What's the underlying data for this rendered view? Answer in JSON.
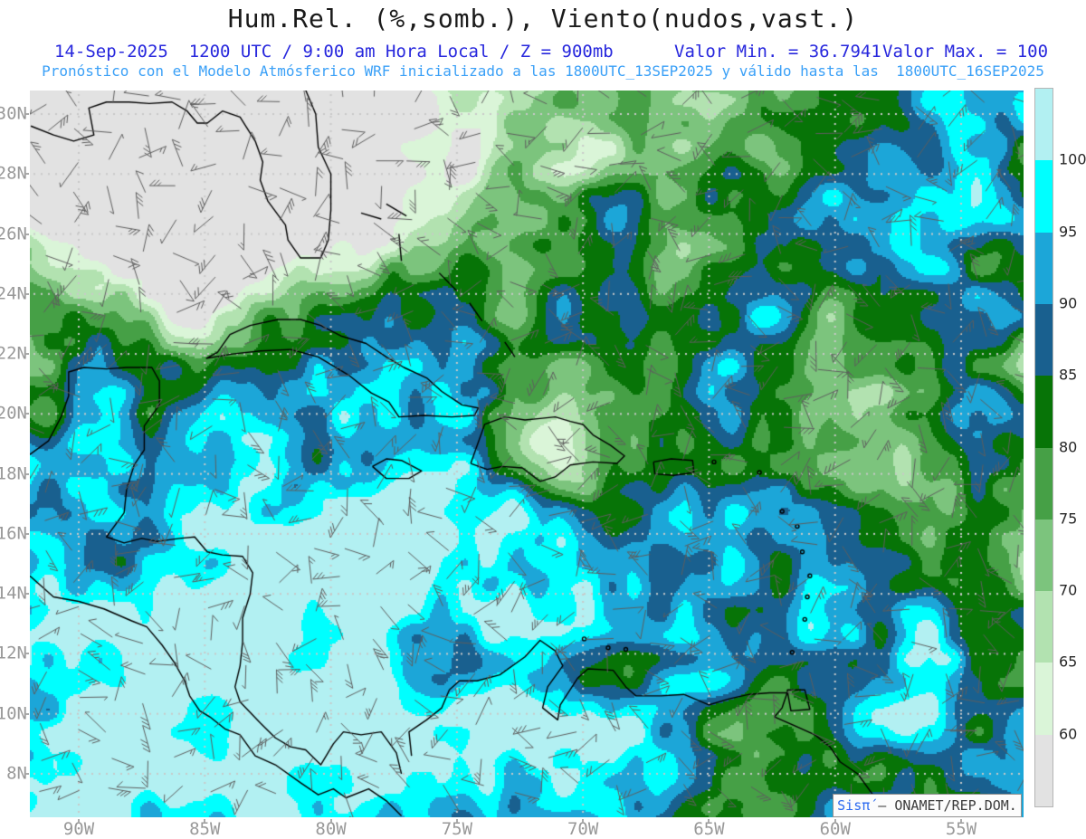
{
  "header": {
    "title": "Hum.Rel. (%,somb.), Viento(nudos,vast.)",
    "line2_left": "14-Sep-2025  1200 UTC / 9:00 am Hora Local / Z = 900mb",
    "line2_valor_min": "Valor Min. = 36.7941",
    "line2_valor_max": "Valor Max. = 100",
    "line3": "Pronóstico con el Modelo Atmósferico WRF inicializado a las 1800UTC_13SEP2025 y válido hasta las  1800UTC_16SEP2025"
  },
  "map": {
    "lat_labels": [
      "30N",
      "28N",
      "26N",
      "24N",
      "22N",
      "20N",
      "18N",
      "16N",
      "14N",
      "12N",
      "10N",
      "8N"
    ],
    "lon_labels": [
      "90W",
      "85W",
      "80W",
      "75W",
      "70W",
      "65W",
      "60W",
      "55W"
    ],
    "axis_label_color": "#999999",
    "gridline_dot_color": "#c9c9c9",
    "coastline_color": "#000000",
    "wind_barb_color": "#5e5e5e"
  },
  "colorbar": {
    "tick_labels": [
      "100",
      "95",
      "90",
      "85",
      "80",
      "75",
      "70",
      "65",
      "60"
    ],
    "colors_top_to_bottom": [
      "#b2f0f2",
      "#00ffff",
      "#1ca6d8",
      "#19608f",
      "#077407",
      "#46a046",
      "#7cc47d",
      "#b2e2b0",
      "#daf5d8",
      "#e2e2e2"
    ],
    "label_color": "#262626"
  },
  "watermark": {
    "brand": "Sisπ́",
    "rest": " – ONAMET/REP.DOM."
  }
}
